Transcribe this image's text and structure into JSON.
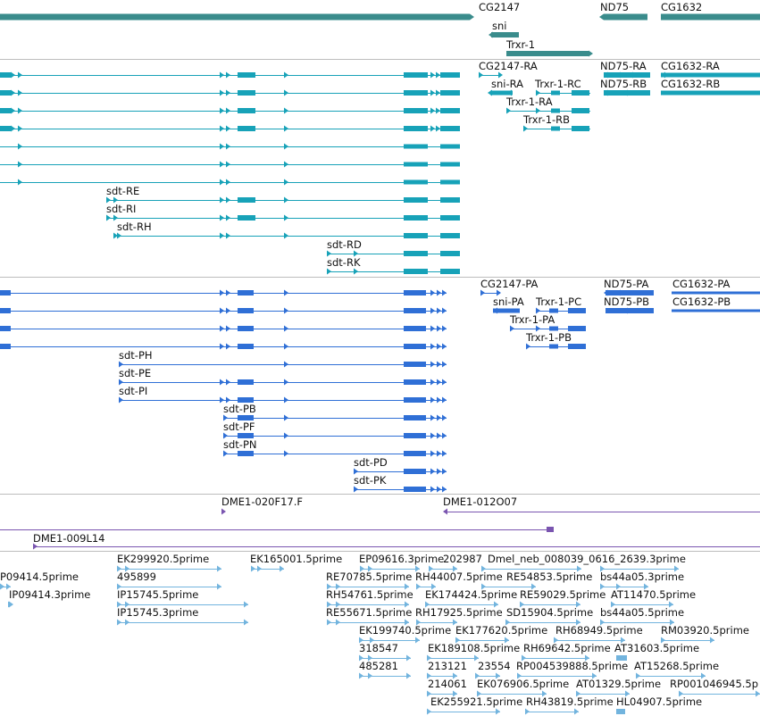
{
  "colors": {
    "gene": "#3a8c8c",
    "transcript": "#17a2b8",
    "protein": "#2f6fd6",
    "clone": "#7a55b0",
    "est": "#72b4de",
    "separator": "#bdbdbd"
  },
  "tracks": {
    "genes": {
      "labels": [
        "CG2147",
        "sni",
        "Trxr-1",
        "ND75",
        "CG1632"
      ]
    },
    "transcripts": {
      "labels": [
        "CG2147-RA",
        "ND75-RA",
        "CG1632-RA",
        "sni-RA",
        "Trxr-1-RC",
        "ND75-RB",
        "CG1632-RB",
        "Trxr-1-RA",
        "Trxr-1-RB",
        "sdt-RE",
        "sdt-RI",
        "sdt-RH",
        "sdt-RD",
        "sdt-RK"
      ]
    },
    "proteins": {
      "labels": [
        "CG2147-PA",
        "ND75-PA",
        "CG1632-PA",
        "sni-PA",
        "Trxr-1-PC",
        "ND75-PB",
        "CG1632-PB",
        "Trxr-1-PA",
        "Trxr-1-PB",
        "sdt-PH",
        "sdt-PE",
        "sdt-PI",
        "sdt-PB",
        "sdt-PF",
        "sdt-PN",
        "sdt-PD",
        "sdt-PK"
      ]
    },
    "clones": {
      "labels": [
        "DME1-020F17.F",
        "DME1-012O07",
        "DME1-009L14"
      ]
    },
    "ests": {
      "labels": [
        "EK299920.5prime",
        "EK165001.5prime",
        "EP09616.3prime",
        "202987",
        "Dmel_neb_008039_0616_2639.3prime",
        "P09414.5prime",
        "495899",
        "RE70785.5prime",
        "RH44007.5prime",
        "RE54853.5prime",
        "bs44a05.3prime",
        "IP09414.3prime",
        "IP15745.5prime",
        "RH54761.5prime",
        "EK174424.5prime",
        "RE59029.5prime",
        "AT11470.5prime",
        "IP15745.3prime",
        "RE55671.5prime",
        "RH17925.5prime",
        "SD15904.5prime",
        "bs44a05.5prime",
        "EK199740.5prime",
        "EK177620.5prime",
        "RH68949.5prime",
        "RM03920.5prime",
        "318547",
        "EK189108.5prime",
        "RH69642.5prime",
        "AT31603.5prime",
        "485281",
        "213121",
        "23554",
        "RP004539888.5prime",
        "AT15268.5prime",
        "214061",
        "EK076906.5prime",
        "AT01329.5prime",
        "RP001046945.5p",
        "EK255921.5prime",
        "RH43819.5prime",
        "HL04907.5prime"
      ]
    }
  }
}
